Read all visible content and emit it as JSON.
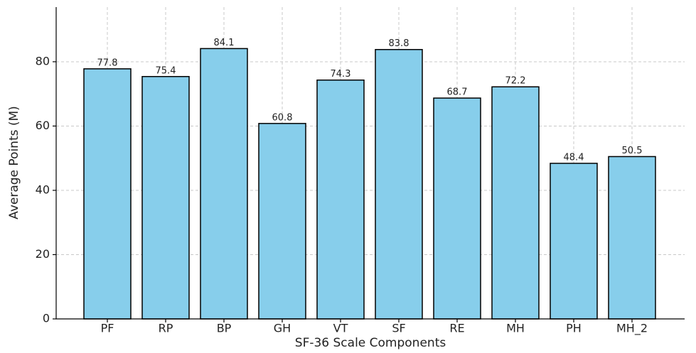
{
  "chart_data": {
    "type": "bar",
    "x_label": "SF-36 Scale Components",
    "y_label": "Average Points (M)",
    "categories": [
      "PF",
      "RP",
      "BP",
      "GH",
      "VT",
      "SF",
      "RE",
      "MH",
      "PH",
      "MH_2"
    ],
    "values": [
      77.8,
      75.4,
      84.1,
      60.8,
      74.3,
      83.8,
      68.7,
      72.2,
      48.4,
      50.5
    ],
    "color": "#87ceeb",
    "edge_color": "#000000",
    "ylim": [
      0,
      97
    ],
    "yticks": [
      0,
      20,
      40,
      60,
      80
    ],
    "grid": true
  }
}
